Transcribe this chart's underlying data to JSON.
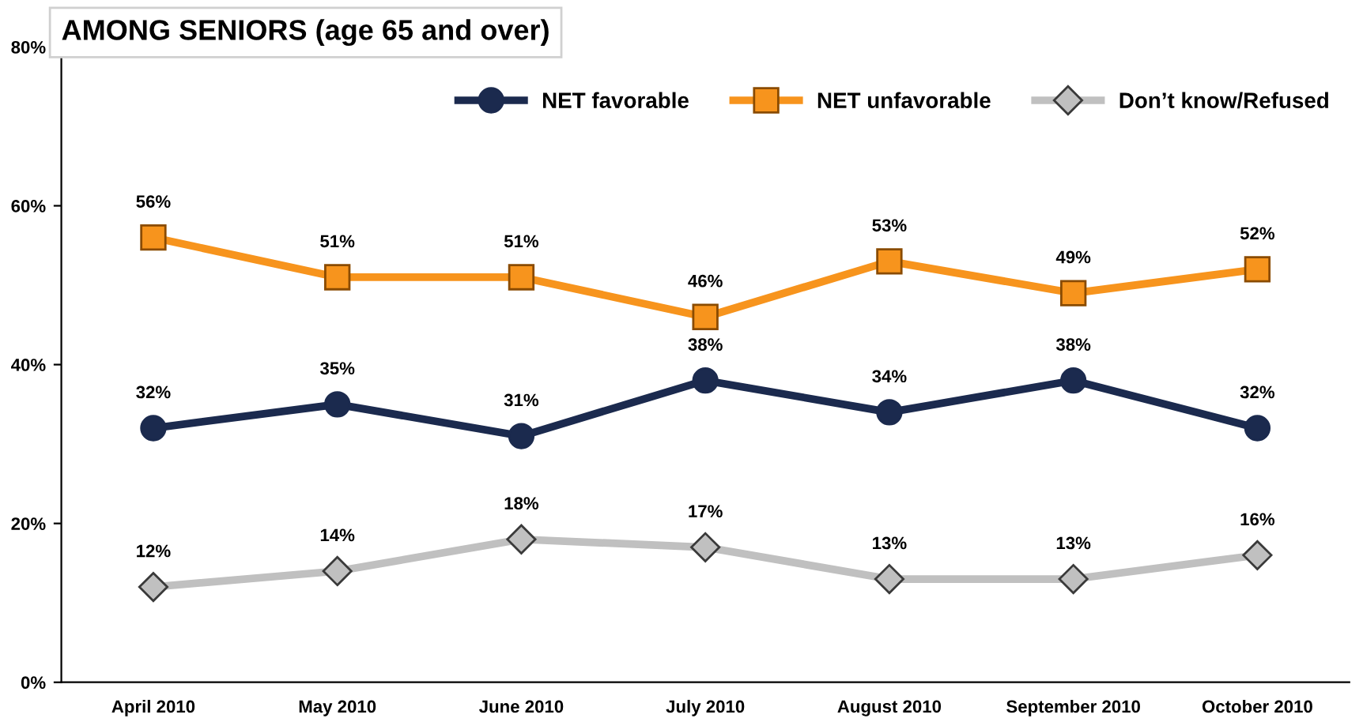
{
  "chart_data": {
    "type": "line",
    "title": "AMONG SENIORS (age 65 and over)",
    "categories": [
      "April 2010",
      "May 2010",
      "June 2010",
      "July 2010",
      "August 2010",
      "September 2010",
      "October 2010"
    ],
    "series": [
      {
        "name": "NET favorable",
        "color": "#1b2a4e",
        "marker": "circle",
        "values": [
          32,
          35,
          31,
          38,
          34,
          38,
          32
        ],
        "value_labels": [
          "32%",
          "35%",
          "31%",
          "38%",
          "34%",
          "38%",
          "32%"
        ]
      },
      {
        "name": "NET unfavorable",
        "color": "#f7941d",
        "marker": "square",
        "values": [
          56,
          51,
          51,
          46,
          53,
          49,
          52
        ],
        "value_labels": [
          "56%",
          "51%",
          "51%",
          "46%",
          "53%",
          "49%",
          "52%"
        ]
      },
      {
        "name": "Don’t know/Refused",
        "color": "#c0c0c0",
        "marker": "diamond",
        "values": [
          12,
          14,
          18,
          17,
          13,
          13,
          16
        ],
        "value_labels": [
          "12%",
          "14%",
          "18%",
          "17%",
          "13%",
          "13%",
          "16%"
        ]
      }
    ],
    "ylim": [
      0,
      80
    ],
    "yticks": [
      {
        "value": 0,
        "label": "0%"
      },
      {
        "value": 20,
        "label": "20%"
      },
      {
        "value": 40,
        "label": "40%"
      },
      {
        "value": 60,
        "label": "60%"
      },
      {
        "value": 80,
        "label": "80%"
      }
    ],
    "legend": "top right",
    "grid": false
  }
}
